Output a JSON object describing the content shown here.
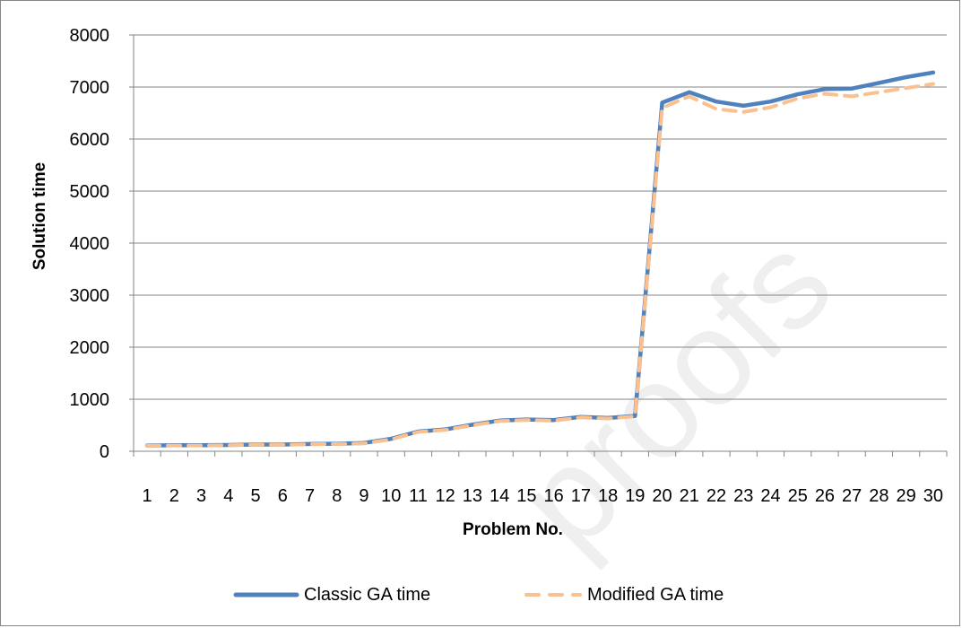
{
  "chart_data": {
    "type": "line",
    "title": "",
    "xlabel": "Problem No.",
    "ylabel": "Solution time",
    "ylim": [
      0,
      8000
    ],
    "yticks": [
      0,
      1000,
      2000,
      3000,
      4000,
      5000,
      6000,
      7000,
      8000
    ],
    "grid": true,
    "legend_position": "bottom",
    "categories": [
      "1",
      "2",
      "3",
      "4",
      "5",
      "6",
      "7",
      "8",
      "9",
      "10",
      "11",
      "12",
      "13",
      "14",
      "15",
      "16",
      "17",
      "18",
      "19",
      "20",
      "21",
      "22",
      "23",
      "24",
      "25",
      "26",
      "27",
      "28",
      "29",
      "30"
    ],
    "series": [
      {
        "name": "Classic GA time",
        "color": "#4f81bd",
        "style": "solid",
        "values": [
          110,
          115,
          115,
          120,
          130,
          130,
          140,
          145,
          160,
          240,
          380,
          420,
          510,
          590,
          610,
          600,
          660,
          640,
          680,
          6700,
          6900,
          6720,
          6640,
          6720,
          6860,
          6960,
          6970,
          7080,
          7190,
          7280
        ]
      },
      {
        "name": "Modified GA time",
        "color": "#fac090",
        "style": "dashed",
        "values": [
          105,
          110,
          110,
          115,
          125,
          125,
          135,
          140,
          150,
          230,
          370,
          410,
          500,
          580,
          600,
          590,
          650,
          630,
          670,
          6600,
          6820,
          6580,
          6520,
          6610,
          6780,
          6870,
          6820,
          6900,
          6980,
          7060
        ]
      }
    ]
  },
  "watermark": {
    "text": "proofs",
    "color": "#efefef"
  }
}
